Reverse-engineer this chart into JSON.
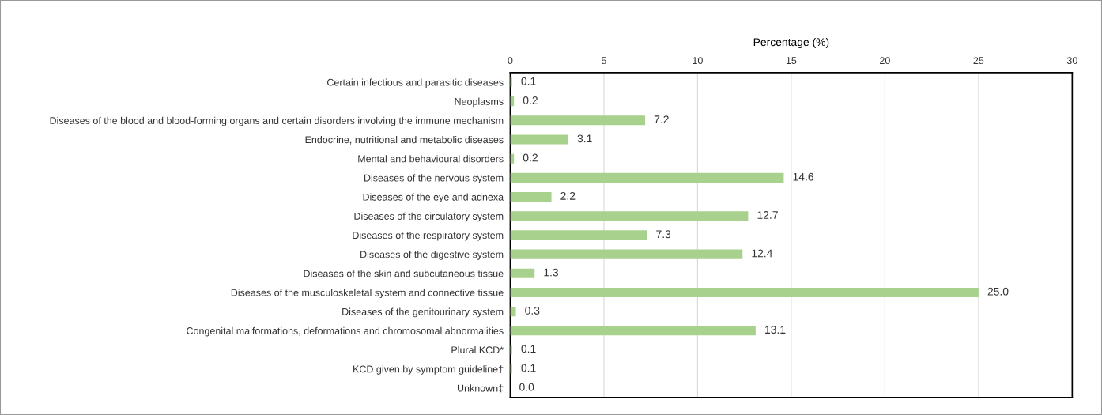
{
  "chart_data": {
    "type": "bar",
    "orientation": "horizontal",
    "xlabel": "Percentage (%)",
    "categories": [
      "Certain infectious and parasitic diseases",
      "Neoplasms",
      "Diseases of the blood and blood-forming organs and certain disorders involving the immune mechanism",
      "Endocrine, nutritional and metabolic diseases",
      "Mental and behavioural disorders",
      "Diseases of the nervous system",
      "Diseases of the eye and adnexa",
      "Diseases of the circulatory system",
      "Diseases of the respiratory system",
      "Diseases of the digestive system",
      "Diseases of the skin and subcutaneous tissue",
      "Diseases of the musculoskeletal system and connective tissue",
      "Diseases of the genitourinary system",
      "Congenital malformations, deformations and chromosomal abnormalities",
      "Plural KCD*",
      "KCD given by symptom guideline†",
      "Unknown‡"
    ],
    "values": [
      0.1,
      0.2,
      7.2,
      3.1,
      0.2,
      14.6,
      2.2,
      12.7,
      7.3,
      12.4,
      1.3,
      25.0,
      0.3,
      13.1,
      0.1,
      0.1,
      0.0
    ],
    "value_labels": [
      "0.1",
      "0.2",
      "7.2",
      "3.1",
      "0.2",
      "14.6",
      "2.2",
      "12.7",
      "7.3",
      "12.4",
      "1.3",
      "25.0",
      "0.3",
      "13.1",
      "0.1",
      "0.1",
      "0.0"
    ],
    "color": "#a9d18e",
    "xlim": [
      0,
      30
    ],
    "xticks": [
      0,
      5,
      10,
      15,
      20,
      25,
      30
    ],
    "grid": "x"
  }
}
